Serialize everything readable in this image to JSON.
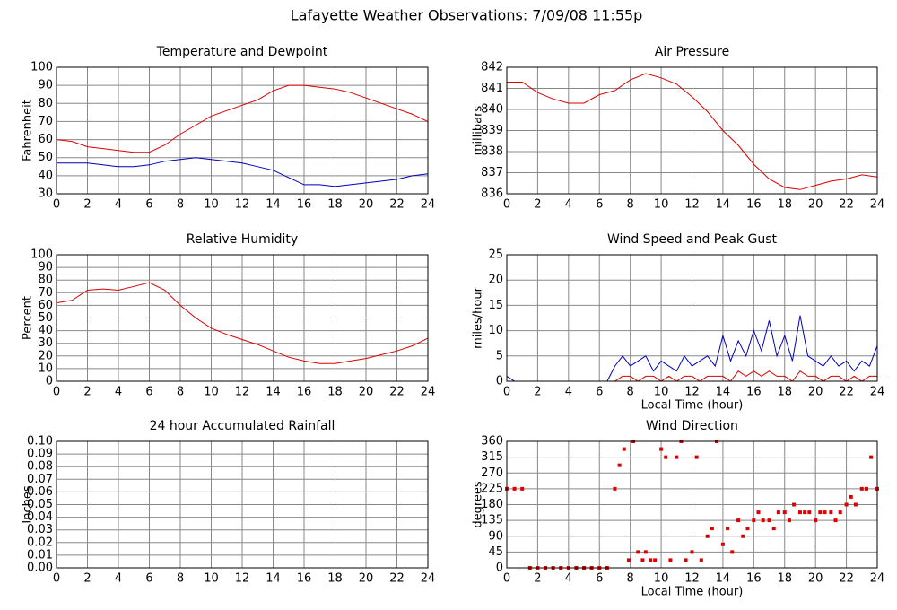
{
  "title": "Lafayette Weather Observations: 7/09/08 11:55p",
  "chart_data": [
    {
      "type": "line",
      "title": "Temperature and Dewpoint",
      "ylabel": "Fahrenheit",
      "grid": true,
      "xlim": [
        0,
        24
      ],
      "xticks": [
        0,
        2,
        4,
        6,
        8,
        10,
        12,
        14,
        16,
        18,
        20,
        22,
        24
      ],
      "ylim": [
        30,
        100
      ],
      "yticks": [
        30,
        40,
        50,
        60,
        70,
        80,
        90,
        100
      ],
      "x": [
        0,
        1,
        2,
        3,
        4,
        5,
        6,
        7,
        8,
        9,
        10,
        11,
        12,
        13,
        14,
        15,
        16,
        17,
        18,
        19,
        20,
        21,
        22,
        23,
        24
      ],
      "series": [
        {
          "color": "#dd0000",
          "values": [
            60,
            59,
            56,
            55,
            54,
            53,
            53,
            57,
            63,
            68,
            73,
            76,
            79,
            82,
            87,
            90,
            90,
            89,
            88,
            86,
            83,
            80,
            77,
            74,
            70
          ]
        },
        {
          "color": "#0000bb",
          "values": [
            47,
            47,
            47,
            46,
            45,
            45,
            46,
            48,
            49,
            50,
            49,
            48,
            47,
            45,
            43,
            39,
            35,
            35,
            34,
            35,
            36,
            37,
            38,
            40,
            41
          ]
        }
      ]
    },
    {
      "type": "line",
      "title": "Air Pressure",
      "ylabel": "millibars",
      "grid": true,
      "xlim": [
        0,
        24
      ],
      "xticks": [
        0,
        2,
        4,
        6,
        8,
        10,
        12,
        14,
        16,
        18,
        20,
        22,
        24
      ],
      "ylim": [
        836,
        842
      ],
      "yticks": [
        836,
        837,
        838,
        839,
        840,
        841,
        842
      ],
      "x": [
        0,
        1,
        2,
        3,
        4,
        5,
        6,
        7,
        8,
        9,
        10,
        11,
        12,
        13,
        14,
        15,
        16,
        17,
        18,
        19,
        20,
        21,
        22,
        23,
        24
      ],
      "series": [
        {
          "color": "#dd0000",
          "values": [
            841.3,
            841.3,
            840.8,
            840.5,
            840.3,
            840.3,
            840.7,
            840.9,
            841.4,
            841.7,
            841.5,
            841.2,
            840.6,
            839.9,
            839.0,
            838.3,
            837.4,
            836.7,
            836.3,
            836.2,
            836.4,
            836.6,
            836.7,
            836.9,
            836.8
          ]
        }
      ]
    },
    {
      "type": "line",
      "title": "Relative Humidity",
      "ylabel": "Percent",
      "grid": true,
      "xlim": [
        0,
        24
      ],
      "xticks": [
        0,
        2,
        4,
        6,
        8,
        10,
        12,
        14,
        16,
        18,
        20,
        22,
        24
      ],
      "ylim": [
        0,
        100
      ],
      "yticks": [
        0,
        10,
        20,
        30,
        40,
        50,
        60,
        70,
        80,
        90,
        100
      ],
      "x": [
        0,
        1,
        2,
        3,
        4,
        5,
        6,
        7,
        8,
        9,
        10,
        11,
        12,
        13,
        14,
        15,
        16,
        17,
        18,
        19,
        20,
        21,
        22,
        23,
        24
      ],
      "series": [
        {
          "color": "#dd0000",
          "values": [
            62,
            64,
            72,
            73,
            72,
            75,
            78,
            72,
            60,
            50,
            42,
            37,
            33,
            29,
            24,
            19,
            16,
            14,
            14,
            16,
            18,
            21,
            24,
            28,
            34
          ]
        }
      ]
    },
    {
      "type": "line",
      "title": "Wind Speed and Peak Gust",
      "ylabel": "miles/hour",
      "xlabel": "Local Time (hour)",
      "grid": true,
      "xlim": [
        0,
        24
      ],
      "xticks": [
        0,
        2,
        4,
        6,
        8,
        10,
        12,
        14,
        16,
        18,
        20,
        22,
        24
      ],
      "ylim": [
        0,
        25
      ],
      "yticks": [
        0,
        5,
        10,
        15,
        20,
        25
      ],
      "x": [
        0,
        0.5,
        1,
        1.5,
        2,
        2.5,
        3,
        3.5,
        4,
        4.5,
        5,
        5.5,
        6,
        6.5,
        7,
        7.5,
        8,
        8.5,
        9,
        9.5,
        10,
        10.5,
        11,
        11.5,
        12,
        12.5,
        13,
        13.5,
        14,
        14.5,
        15,
        15.5,
        16,
        16.5,
        17,
        17.5,
        18,
        18.5,
        19,
        19.5,
        20,
        20.5,
        21,
        21.5,
        22,
        22.5,
        23,
        23.5,
        24
      ],
      "series": [
        {
          "color": "#0000bb",
          "values": [
            1,
            0,
            0,
            0,
            0,
            0,
            0,
            0,
            0,
            0,
            0,
            0,
            0,
            0,
            3,
            5,
            3,
            4,
            5,
            2,
            4,
            3,
            2,
            5,
            3,
            4,
            5,
            3,
            9,
            4,
            8,
            5,
            10,
            6,
            12,
            5,
            9,
            4,
            13,
            5,
            4,
            3,
            5,
            3,
            4,
            2,
            4,
            3,
            7
          ]
        },
        {
          "color": "#dd0000",
          "values": [
            0,
            0,
            0,
            0,
            0,
            0,
            0,
            0,
            0,
            0,
            0,
            0,
            0,
            0,
            0,
            1,
            1,
            0,
            1,
            1,
            0,
            1,
            0,
            1,
            1,
            0,
            1,
            1,
            1,
            0,
            2,
            1,
            2,
            1,
            2,
            1,
            1,
            0,
            2,
            1,
            1,
            0,
            1,
            1,
            0,
            1,
            0,
            1,
            1
          ]
        }
      ]
    },
    {
      "type": "line",
      "title": "24 hour Accumulated Rainfall",
      "ylabel": "Inches",
      "grid": true,
      "xlim": [
        0,
        24
      ],
      "xticks": [
        0,
        2,
        4,
        6,
        8,
        10,
        12,
        14,
        16,
        18,
        20,
        22,
        24
      ],
      "ylim": [
        0,
        0.1
      ],
      "yticks": [
        {
          "value": 0,
          "label": "0.00"
        },
        {
          "value": 0.01,
          "label": "0.01"
        },
        {
          "value": 0.02,
          "label": "0.02"
        },
        {
          "value": 0.03,
          "label": "0.03"
        },
        {
          "value": 0.04,
          "label": "0.04"
        },
        {
          "value": 0.05,
          "label": "0.05"
        },
        {
          "value": 0.06,
          "label": "0.06"
        },
        {
          "value": 0.07,
          "label": "0.07"
        },
        {
          "value": 0.08,
          "label": "0.08"
        },
        {
          "value": 0.09,
          "label": "0.09"
        },
        {
          "value": 0.1,
          "label": "0.10"
        }
      ],
      "x": [
        0,
        24
      ],
      "series": [
        {
          "color": "#dd0000",
          "values": [
            0,
            0
          ]
        }
      ]
    },
    {
      "type": "scatter",
      "title": "Wind Direction",
      "ylabel": "degrees",
      "xlabel": "Local Time (hour)",
      "grid": true,
      "xlim": [
        0,
        24
      ],
      "xticks": [
        0,
        2,
        4,
        6,
        8,
        10,
        12,
        14,
        16,
        18,
        20,
        22,
        24
      ],
      "ylim": [
        0,
        360
      ],
      "yticks": [
        0,
        45,
        90,
        135,
        180,
        225,
        270,
        315,
        360
      ],
      "x": [
        0,
        0.5,
        1,
        1.5,
        2,
        2.5,
        3,
        3.5,
        4,
        4.5,
        5,
        5.5,
        6,
        6.5,
        7,
        7.3,
        7.6,
        7.9,
        8.2,
        8.5,
        8.8,
        9,
        9.3,
        9.6,
        10,
        10.3,
        10.6,
        11,
        11.3,
        11.6,
        12,
        12.3,
        12.6,
        13,
        13.3,
        13.6,
        14,
        14.3,
        14.6,
        15,
        15.3,
        15.6,
        16,
        16.3,
        16.6,
        17,
        17.3,
        17.6,
        18,
        18.3,
        18.6,
        19,
        19.3,
        19.6,
        20,
        20.3,
        20.6,
        21,
        21.3,
        21.6,
        22,
        22.3,
        22.6,
        23,
        23.3,
        23.6,
        24
      ],
      "series": [
        {
          "color": "#dd0000",
          "values": [
            225,
            225,
            225,
            0,
            0,
            0,
            0,
            0,
            0,
            0,
            0,
            0,
            0,
            0,
            225,
            292,
            338,
            22,
            360,
            45,
            22,
            45,
            22,
            22,
            338,
            315,
            22,
            315,
            360,
            22,
            45,
            315,
            22,
            90,
            112,
            360,
            67,
            112,
            45,
            135,
            90,
            112,
            135,
            158,
            135,
            135,
            112,
            158,
            158,
            135,
            180,
            158,
            158,
            158,
            135,
            158,
            158,
            158,
            135,
            158,
            180,
            202,
            180,
            225,
            225,
            315,
            225
          ]
        }
      ]
    }
  ]
}
